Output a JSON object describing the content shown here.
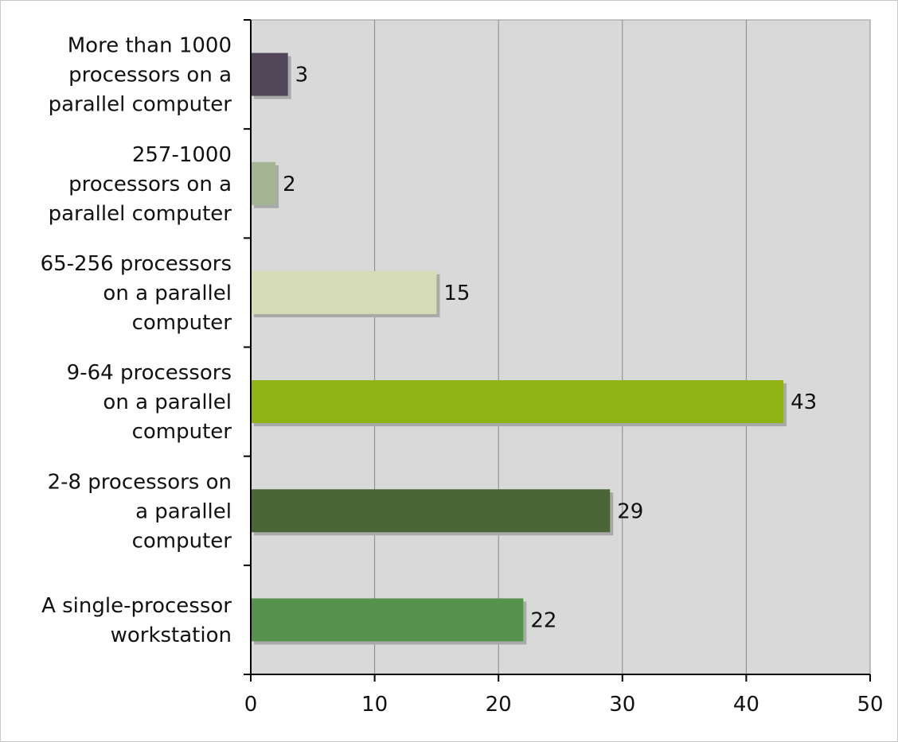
{
  "chart_data": {
    "type": "bar",
    "orientation": "horizontal",
    "title": "",
    "xlabel": "",
    "ylabel": "",
    "xlim": [
      0,
      50
    ],
    "xticks": [
      0,
      10,
      20,
      30,
      40,
      50
    ],
    "grid": true,
    "categories": [
      {
        "lines": [
          "More than 1000",
          "processors on a",
          "parallel computer"
        ],
        "value": 3,
        "color": "#524659"
      },
      {
        "lines": [
          "257-1000",
          "processors on a",
          "parallel computer"
        ],
        "value": 2,
        "color": "#a3b593"
      },
      {
        "lines": [
          "65-256 processors",
          "on a parallel",
          "computer"
        ],
        "value": 15,
        "color": "#d6ddb6"
      },
      {
        "lines": [
          "9-64 processors",
          "on a parallel",
          "computer"
        ],
        "value": 43,
        "color": "#8fb314"
      },
      {
        "lines": [
          "2-8 processors on",
          "a parallel",
          "computer"
        ],
        "value": 29,
        "color": "#4a6636"
      },
      {
        "lines": [
          "A single-processor",
          "workstation"
        ],
        "value": 22,
        "color": "#56924e"
      }
    ],
    "colors": {
      "plot_background": "#d9d9d9",
      "gridline": "#888888",
      "axis": "#000000",
      "bar_shadow": "#a9a9a9"
    }
  }
}
